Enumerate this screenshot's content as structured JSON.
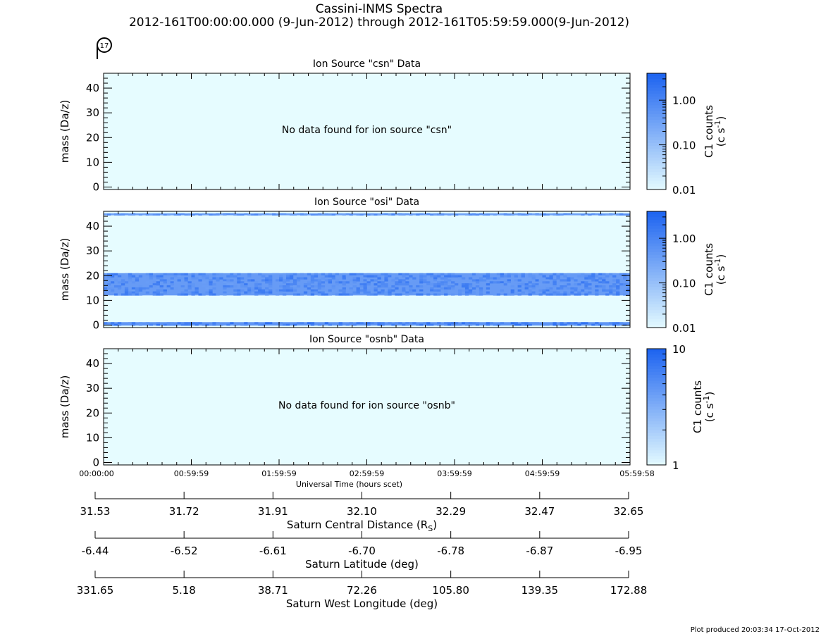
{
  "header": {
    "title": "Cassini-INMS Spectra",
    "subtitle": "2012-161T00:00:00.000 (9-Jun-2012) through 2012-161T05:59:59.000(9-Jun-2012)",
    "badge": "17"
  },
  "footer": {
    "plot_produced": "Plot produced 20:03:34 17-Oct-2012"
  },
  "colors": {
    "background_low": "#e6fcff",
    "scale_high": "#1e64f0",
    "band": "#4a9cf0"
  },
  "chart_data": [
    {
      "type": "heatmap",
      "title": "Ion Source \"csn\" Data",
      "ylabel": "mass (Da/z)",
      "ylim": [
        -1,
        46
      ],
      "yticks": [
        "0",
        "10",
        "20",
        "30",
        "40"
      ],
      "message": "No data found for ion source \"csn\"",
      "bands": [],
      "colorbar": {
        "label": "C1 counts",
        "units": "(c s",
        "units_exp": "-1",
        "units_end": ")",
        "scale": "log",
        "range": [
          0.01,
          4
        ],
        "ticks": [
          "1.00",
          "0.10",
          "0.01"
        ]
      }
    },
    {
      "type": "heatmap",
      "title": "Ion Source \"osi\" Data",
      "ylabel": "mass (Da/z)",
      "ylim": [
        -1,
        46
      ],
      "yticks": [
        "0",
        "10",
        "20",
        "30",
        "40"
      ],
      "message": "",
      "bands": [
        {
          "from": 12,
          "to": 21,
          "level": 0.75
        },
        {
          "from": -0.2,
          "to": 1.2,
          "level": 0.8
        },
        {
          "from": 44.4,
          "to": 45.2,
          "level": 0.7
        }
      ],
      "colorbar": {
        "label": "C1 counts",
        "units": "(c s",
        "units_exp": "-1",
        "units_end": ")",
        "scale": "log",
        "range": [
          0.01,
          4
        ],
        "ticks": [
          "1.00",
          "0.10",
          "0.01"
        ]
      }
    },
    {
      "type": "heatmap",
      "title": "Ion Source \"osnb\" Data",
      "ylabel": "mass (Da/z)",
      "ylim": [
        -1,
        46
      ],
      "yticks": [
        "0",
        "10",
        "20",
        "30",
        "40"
      ],
      "message": "No data found for ion source \"osnb\"",
      "bands": [],
      "colorbar": {
        "label": "C1 counts",
        "units": "(c s",
        "units_exp": "-1",
        "units_end": ")",
        "scale": "log",
        "range": [
          1,
          10
        ],
        "ticks": [
          "10",
          "1"
        ]
      }
    }
  ],
  "time_axis": {
    "xlabel": "Universal Time (hours scet)",
    "ticks": [
      "00:00:00",
      "00:59:59",
      "01:59:59",
      "02:59:59",
      "03:59:59",
      "04:59:59",
      "05:59:58"
    ]
  },
  "aux_axes": [
    {
      "label": "Saturn Central Distance (R",
      "label_sub": "S",
      "label_end": ")",
      "ticks": [
        "31.53",
        "31.72",
        "31.91",
        "32.10",
        "32.29",
        "32.47",
        "32.65"
      ]
    },
    {
      "label": "Saturn Latitude (deg)",
      "label_sub": "",
      "label_end": "",
      "ticks": [
        "-6.44",
        "-6.52",
        "-6.61",
        "-6.70",
        "-6.78",
        "-6.87",
        "-6.95"
      ]
    },
    {
      "label": "Saturn West Longitude (deg)",
      "label_sub": "",
      "label_end": "",
      "ticks": [
        "331.65",
        "5.18",
        "38.71",
        "72.26",
        "105.80",
        "139.35",
        "172.88"
      ]
    }
  ]
}
